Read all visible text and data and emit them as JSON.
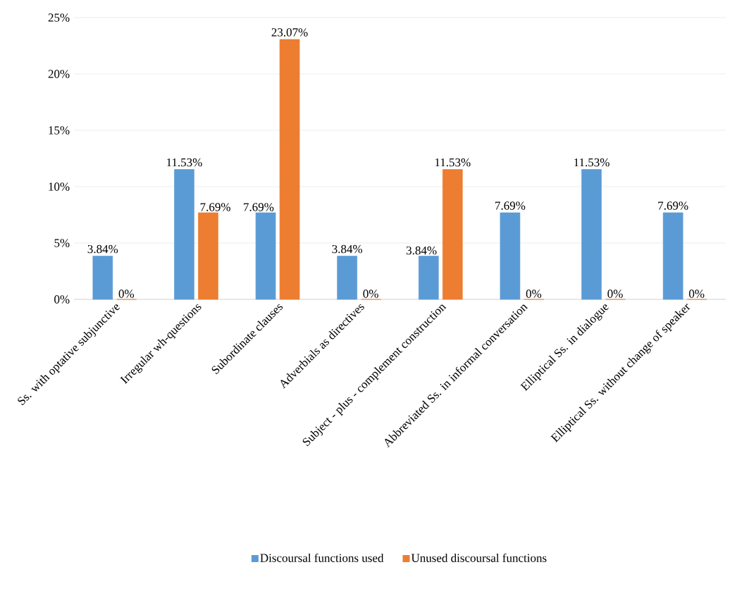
{
  "chart_data": {
    "type": "bar",
    "categories": [
      "Ss. with optative subjunctive",
      "Irregular wh-questions",
      "Subordinate clauses",
      "Adverbials as directives",
      "Subject - plus - complement construction",
      "Abbreviated Ss. in informal conversation",
      "Elliptical Ss. in dialogue",
      "Elliptical Ss. without change of speaker"
    ],
    "series": [
      {
        "name": "Discoursal functions used",
        "color": "#5b9bd5",
        "values": [
          3.84,
          11.53,
          7.69,
          3.84,
          3.84,
          7.69,
          11.53,
          7.69
        ],
        "value_labels": [
          "3.84%",
          "11.53%",
          "7.69%",
          "3.84%",
          "3.84%",
          "7.69%",
          "11.53%",
          "7.69%"
        ]
      },
      {
        "name": "Unused discoursal functions",
        "color": "#ed7d31",
        "values": [
          0,
          7.69,
          23.07,
          0,
          11.53,
          0,
          0,
          0
        ],
        "value_labels": [
          "0%",
          "7.69%",
          "23.07%",
          "0%",
          "11.53%",
          "0%",
          "0%",
          "0%"
        ]
      }
    ],
    "ylim": [
      0,
      25
    ],
    "yticks": [
      {
        "value": 0,
        "label": "0%"
      },
      {
        "value": 5,
        "label": "5%"
      },
      {
        "value": 10,
        "label": "10%"
      },
      {
        "value": 15,
        "label": "15%"
      },
      {
        "value": 20,
        "label": "20%"
      },
      {
        "value": 25,
        "label": "25%"
      }
    ],
    "grid": "y",
    "legend": "bottom"
  }
}
